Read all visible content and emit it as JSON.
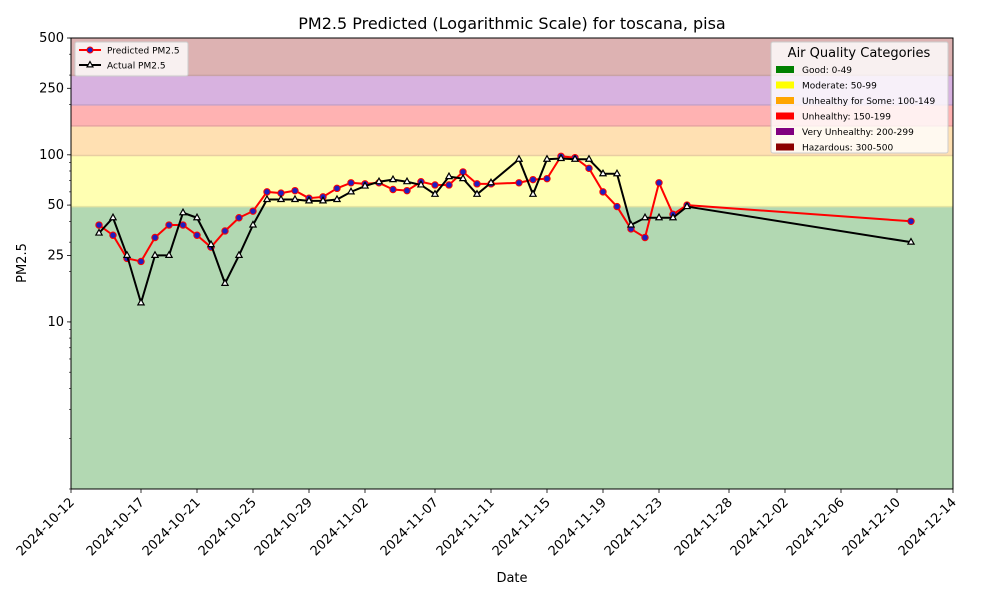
{
  "chart_data": {
    "type": "line",
    "title": "PM2.5 Predicted (Logarithmic Scale) for toscana, pisa",
    "xlabel": "Date",
    "ylabel": "PM2.5",
    "y_scale": "log",
    "ylim": [
      1,
      500
    ],
    "xlim": [
      "2024-10-12",
      "2024-12-14"
    ],
    "x_ticks": [
      "2024-10-12",
      "2024-10-17",
      "2024-10-21",
      "2024-10-25",
      "2024-10-29",
      "2024-11-02",
      "2024-11-07",
      "2024-11-11",
      "2024-11-15",
      "2024-11-19",
      "2024-11-23",
      "2024-11-28",
      "2024-12-02",
      "2024-12-06",
      "2024-12-10",
      "2024-12-14"
    ],
    "y_ticks": [
      {
        "value": 10,
        "label": "10"
      },
      {
        "value": 25,
        "label": "25"
      },
      {
        "value": 50,
        "label": "50"
      },
      {
        "value": 100,
        "label": "100"
      },
      {
        "value": 250,
        "label": "250"
      },
      {
        "value": 500,
        "label": "500"
      }
    ],
    "grid": false,
    "bands": [
      {
        "from": 1,
        "to": 49,
        "color": "#b2d8b2"
      },
      {
        "from": 49,
        "to": 99,
        "color": "#ffffb2"
      },
      {
        "from": 99,
        "to": 149,
        "color": "#ffe0b2"
      },
      {
        "from": 149,
        "to": 199,
        "color": "#ffb2b2"
      },
      {
        "from": 199,
        "to": 299,
        "color": "#d8b2e0"
      },
      {
        "from": 299,
        "to": 500,
        "color": "#ddb2b2"
      }
    ],
    "series": [
      {
        "name": "Predicted PM2.5",
        "color": "#ff0000",
        "marker_fill": "#1f1fbf",
        "marker": "circle",
        "x": [
          "2024-10-14",
          "2024-10-15",
          "2024-10-16",
          "2024-10-17",
          "2024-10-18",
          "2024-10-19",
          "2024-10-20",
          "2024-10-21",
          "2024-10-22",
          "2024-10-23",
          "2024-10-24",
          "2024-10-25",
          "2024-10-26",
          "2024-10-27",
          "2024-10-28",
          "2024-10-29",
          "2024-10-30",
          "2024-10-31",
          "2024-11-01",
          "2024-11-02",
          "2024-11-03",
          "2024-11-04",
          "2024-11-05",
          "2024-11-06",
          "2024-11-07",
          "2024-11-08",
          "2024-11-09",
          "2024-11-10",
          "2024-11-11",
          "2024-11-13",
          "2024-11-14",
          "2024-11-15",
          "2024-11-16",
          "2024-11-17",
          "2024-11-18",
          "2024-11-19",
          "2024-11-20",
          "2024-11-21",
          "2024-11-22",
          "2024-11-23",
          "2024-11-24",
          "2024-11-25",
          "2024-12-11"
        ],
        "values": [
          38,
          33,
          24,
          23,
          32,
          38,
          38,
          33,
          28,
          35,
          42,
          46,
          60,
          59,
          61,
          55,
          56,
          63,
          68,
          67,
          68,
          62,
          61,
          69,
          66,
          66,
          79,
          67,
          67,
          68,
          71,
          72,
          98,
          96,
          83,
          60,
          49,
          36,
          32,
          68,
          44,
          50,
          40
        ]
      },
      {
        "name": "Actual PM2.5",
        "color": "#000000",
        "marker_fill": "#ffffff",
        "marker": "triangle",
        "x": [
          "2024-10-14",
          "2024-10-15",
          "2024-10-16",
          "2024-10-17",
          "2024-10-18",
          "2024-10-19",
          "2024-10-20",
          "2024-10-21",
          "2024-10-22",
          "2024-10-23",
          "2024-10-24",
          "2024-10-25",
          "2024-10-26",
          "2024-10-27",
          "2024-10-28",
          "2024-10-29",
          "2024-10-30",
          "2024-10-31",
          "2024-11-01",
          "2024-11-02",
          "2024-11-03",
          "2024-11-04",
          "2024-11-05",
          "2024-11-06",
          "2024-11-07",
          "2024-11-08",
          "2024-11-09",
          "2024-11-10",
          "2024-11-11",
          "2024-11-13",
          "2024-11-14",
          "2024-11-15",
          "2024-11-16",
          "2024-11-17",
          "2024-11-18",
          "2024-11-19",
          "2024-11-20",
          "2024-11-21",
          "2024-11-22",
          "2024-11-23",
          "2024-11-24",
          "2024-11-25",
          "2024-12-11"
        ],
        "values": [
          34,
          42,
          25,
          13,
          25,
          25,
          45,
          42,
          29,
          17,
          25,
          38,
          54,
          54,
          54,
          53,
          53,
          54,
          60,
          65,
          69,
          71,
          69,
          66,
          58,
          74,
          72,
          58,
          68,
          94,
          58,
          94,
          95,
          94,
          94,
          77,
          77,
          38,
          42,
          42,
          42,
          49,
          30
        ]
      }
    ],
    "legend_lines": {
      "placement": "top-left",
      "entries": [
        "Predicted PM2.5",
        "Actual PM2.5"
      ]
    },
    "legend_categories": {
      "placement": "top-right",
      "title": "Air Quality Categories",
      "entries": [
        {
          "label": "Good: 0-49",
          "color": "#008000"
        },
        {
          "label": "Moderate: 50-99",
          "color": "#ffff00"
        },
        {
          "label": "Unhealthy for Some: 100-149",
          "color": "#ffa500"
        },
        {
          "label": "Unhealthy: 150-199",
          "color": "#ff0000"
        },
        {
          "label": "Very Unhealthy: 200-299",
          "color": "#800080"
        },
        {
          "label": "Hazardous: 300-500",
          "color": "#8b0000"
        }
      ]
    }
  }
}
